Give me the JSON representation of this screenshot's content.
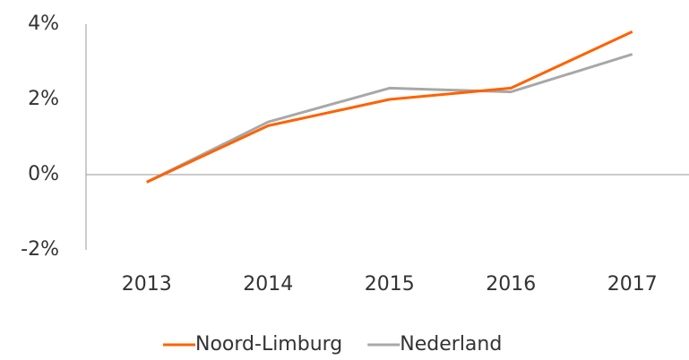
{
  "chart_data": {
    "type": "line",
    "categories": [
      "2013",
      "2014",
      "2015",
      "2016",
      "2017"
    ],
    "series": [
      {
        "name": "Noord-Limburg",
        "color": "#ff6200",
        "values": [
          -0.2,
          1.3,
          2.0,
          2.3,
          3.8
        ]
      },
      {
        "name": "Nederland",
        "color": "#a8a8a8",
        "values": [
          -0.2,
          1.4,
          2.3,
          2.2,
          3.2
        ]
      }
    ],
    "ylim": [
      -2,
      4
    ],
    "yticks": [
      {
        "value": -2,
        "label": "-2%"
      },
      {
        "value": 0,
        "label": "0%"
      },
      {
        "value": 2,
        "label": "2%"
      },
      {
        "value": 4,
        "label": "4%"
      }
    ],
    "legend": "bottom"
  }
}
